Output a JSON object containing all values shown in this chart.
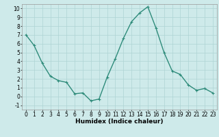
{
  "x": [
    0,
    1,
    2,
    3,
    4,
    5,
    6,
    7,
    8,
    9,
    10,
    11,
    12,
    13,
    14,
    15,
    16,
    17,
    18,
    19,
    20,
    21,
    22,
    23
  ],
  "y": [
    7,
    5.8,
    3.8,
    2.3,
    1.8,
    1.6,
    0.3,
    0.4,
    -0.5,
    -0.3,
    2.2,
    4.3,
    6.6,
    8.5,
    9.5,
    10.2,
    7.8,
    5.0,
    2.9,
    2.5,
    1.3,
    0.7,
    0.9,
    0.4
  ],
  "line_color": "#2e8b7a",
  "marker": "+",
  "bg_color": "#ceeaea",
  "grid_color": "#aed4d4",
  "xlabel": "Humidex (Indice chaleur)",
  "xlim": [
    -0.5,
    23.5
  ],
  "ylim": [
    -1.5,
    10.5
  ],
  "xticks": [
    0,
    1,
    2,
    3,
    4,
    5,
    6,
    7,
    8,
    9,
    10,
    11,
    12,
    13,
    14,
    15,
    16,
    17,
    18,
    19,
    20,
    21,
    22,
    23
  ],
  "yticks": [
    -1,
    0,
    1,
    2,
    3,
    4,
    5,
    6,
    7,
    8,
    9,
    10
  ],
  "xlabel_fontsize": 6.5,
  "tick_fontsize": 5.5,
  "linewidth": 1.0,
  "markersize": 3.5,
  "markeredgewidth": 0.8
}
